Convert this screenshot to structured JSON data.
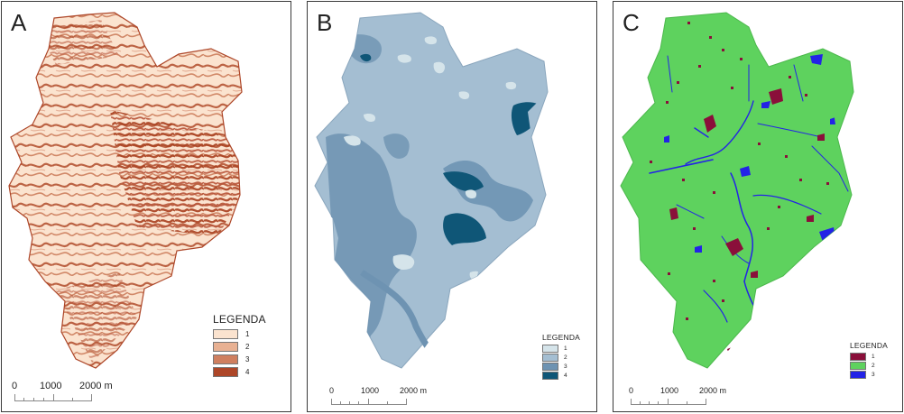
{
  "panels": [
    {
      "letter": "A",
      "legend": {
        "title": "LEGENDA",
        "items": [
          {
            "label": "1",
            "color": "#fbe3cf"
          },
          {
            "label": "2",
            "color": "#e8b193"
          },
          {
            "label": "3",
            "color": "#cf7f5f"
          },
          {
            "label": "4",
            "color": "#ad4628"
          }
        ]
      },
      "scale": {
        "labels": [
          "0",
          "1000",
          "2000 m"
        ]
      }
    },
    {
      "letter": "B",
      "legend": {
        "title": "LEGENDA",
        "items": [
          {
            "label": "1",
            "color": "#d5e4ea"
          },
          {
            "label": "2",
            "color": "#a4bed2"
          },
          {
            "label": "3",
            "color": "#6e93b2"
          },
          {
            "label": "4",
            "color": "#0f5677"
          }
        ]
      },
      "scale": {
        "labels": [
          "0",
          "1000",
          "2000 m"
        ]
      }
    },
    {
      "letter": "C",
      "legend": {
        "title": "LEGENDA",
        "items": [
          {
            "label": "1",
            "color": "#8a0f3a"
          },
          {
            "label": "2",
            "color": "#5ed25e"
          },
          {
            "label": "3",
            "color": "#2323e6"
          }
        ]
      },
      "scale": {
        "labels": [
          "0",
          "1000",
          "2000 m"
        ]
      }
    }
  ]
}
